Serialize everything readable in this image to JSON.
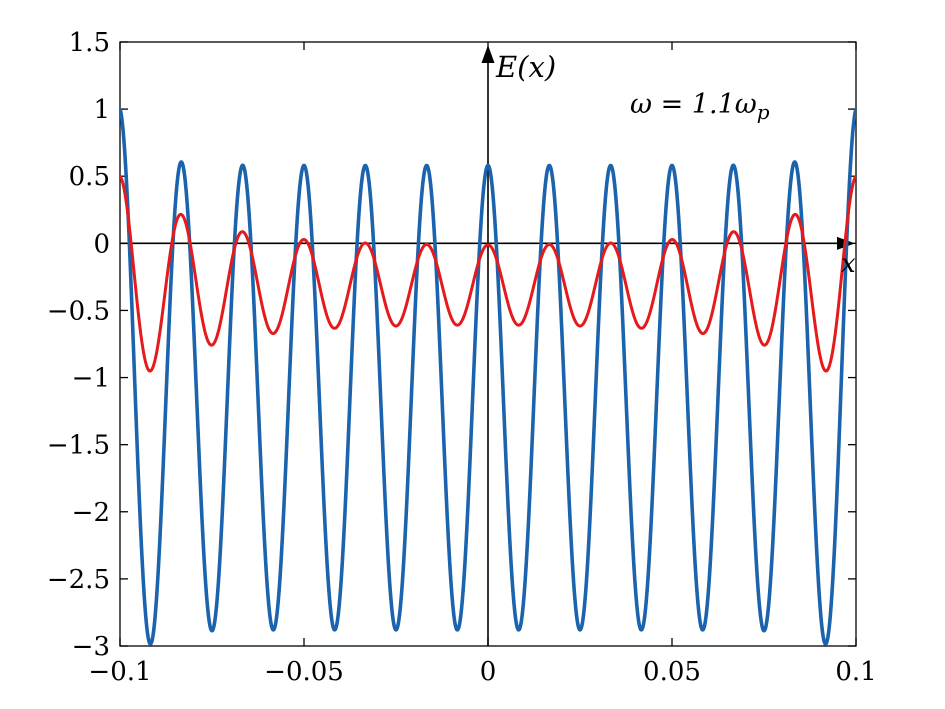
{
  "figure": {
    "background": "#ffffff"
  },
  "chart_data": {
    "type": "line",
    "title": "",
    "xlabel": "x",
    "ylabel": "E(x)",
    "annotation": {
      "prefix": "ω = 1.1ω",
      "subscript": "p"
    },
    "xlim": [
      -0.1,
      0.1
    ],
    "ylim": [
      -3,
      1.5
    ],
    "xticks": [
      -0.1,
      -0.05,
      0,
      0.05,
      0.1
    ],
    "xtick_labels": [
      "−0.1",
      "−0.05",
      "0",
      "0.05",
      "0.1"
    ],
    "yticks": [
      1.5,
      1,
      0.5,
      0,
      -0.5,
      -1,
      -1.5,
      -2,
      -2.5,
      -3
    ],
    "ytick_labels": [
      "1.5",
      "1",
      "0.5",
      "0",
      "−0.5",
      "−1",
      "−1.5",
      "−2",
      "−2.5",
      "−3"
    ],
    "grid": false,
    "legend": false,
    "axes_color": "#000000",
    "series": [
      {
        "name": "blue-wave",
        "color": "#1b64ad",
        "stroke_width": 3.6,
        "model": {
          "type": "cosine_with_edge_envelope",
          "offset": -1.15,
          "amplitude": 1.73,
          "edge_boost": 0.42,
          "edge_width": 0.006,
          "periods": 12,
          "phase": 0
        }
      },
      {
        "name": "red-wave",
        "color": "#e41a1c",
        "stroke_width": 3.0,
        "model": {
          "type": "cosine_with_edge_envelope",
          "offset": -0.31,
          "amplitude": 0.29,
          "edge_boost": 0.52,
          "edge_width": 0.021,
          "periods": 12,
          "phase": 0
        }
      }
    ],
    "key_values": {
      "blue-wave": {
        "value_at_boundaries": 1.0,
        "near_edge_peak": 0.65,
        "center_peak": 0.58,
        "trough": -2.93
      },
      "red-wave": {
        "value_at_boundaries": 0.5,
        "deepest_trough": -0.95,
        "center_peak": -0.02,
        "center_trough": -0.6
      }
    }
  }
}
